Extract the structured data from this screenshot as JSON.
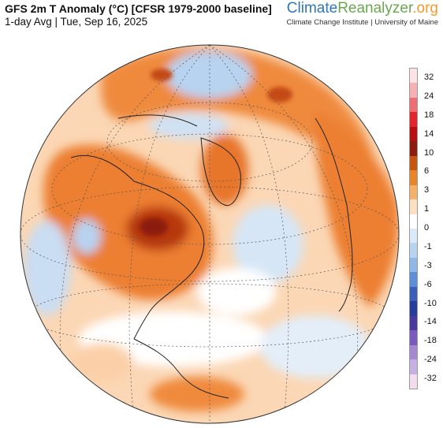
{
  "header": {
    "title": "GFS 2m T Anomaly (°C) [CFSR 1979-2000 baseline]",
    "subtitle": "1-day Avg | Tue, Sep 16, 2025"
  },
  "brand": {
    "part1": "Climate",
    "part2": "Reanalyzer",
    "part3": ".org",
    "subtitle": "Climate Change Institute | University of Maine"
  },
  "legend": {
    "ticks": [
      "32",
      "24",
      "18",
      "14",
      "10",
      "6",
      "3",
      "1",
      "0",
      "-1",
      "-3",
      "-6",
      "-10",
      "-14",
      "-18",
      "-24",
      "-32"
    ],
    "colors": [
      "#fde3e6",
      "#f5b0b4",
      "#ee6f73",
      "#e3262a",
      "#b80f10",
      "#8c1d0c",
      "#c75510",
      "#e8842a",
      "#f5b06a",
      "#fce0c4",
      "#ffffff",
      "#dbeaf8",
      "#b7d3f0",
      "#8fb8e6",
      "#5b8fd6",
      "#3a5fb8",
      "#253f99",
      "#4b3a9e",
      "#7a5bbd",
      "#a587d2",
      "#c6b0e3",
      "#f3dcee"
    ]
  },
  "map": {
    "projection": "orthographic",
    "colors": {
      "ocean_warm": "#fbd7b5",
      "land_warm": "#ef8a3c",
      "hot_core": "#8c1d0c",
      "cold": "#a9c9ee",
      "neutral": "#ffffff",
      "graticule": "#555555",
      "border": "#222222"
    }
  }
}
